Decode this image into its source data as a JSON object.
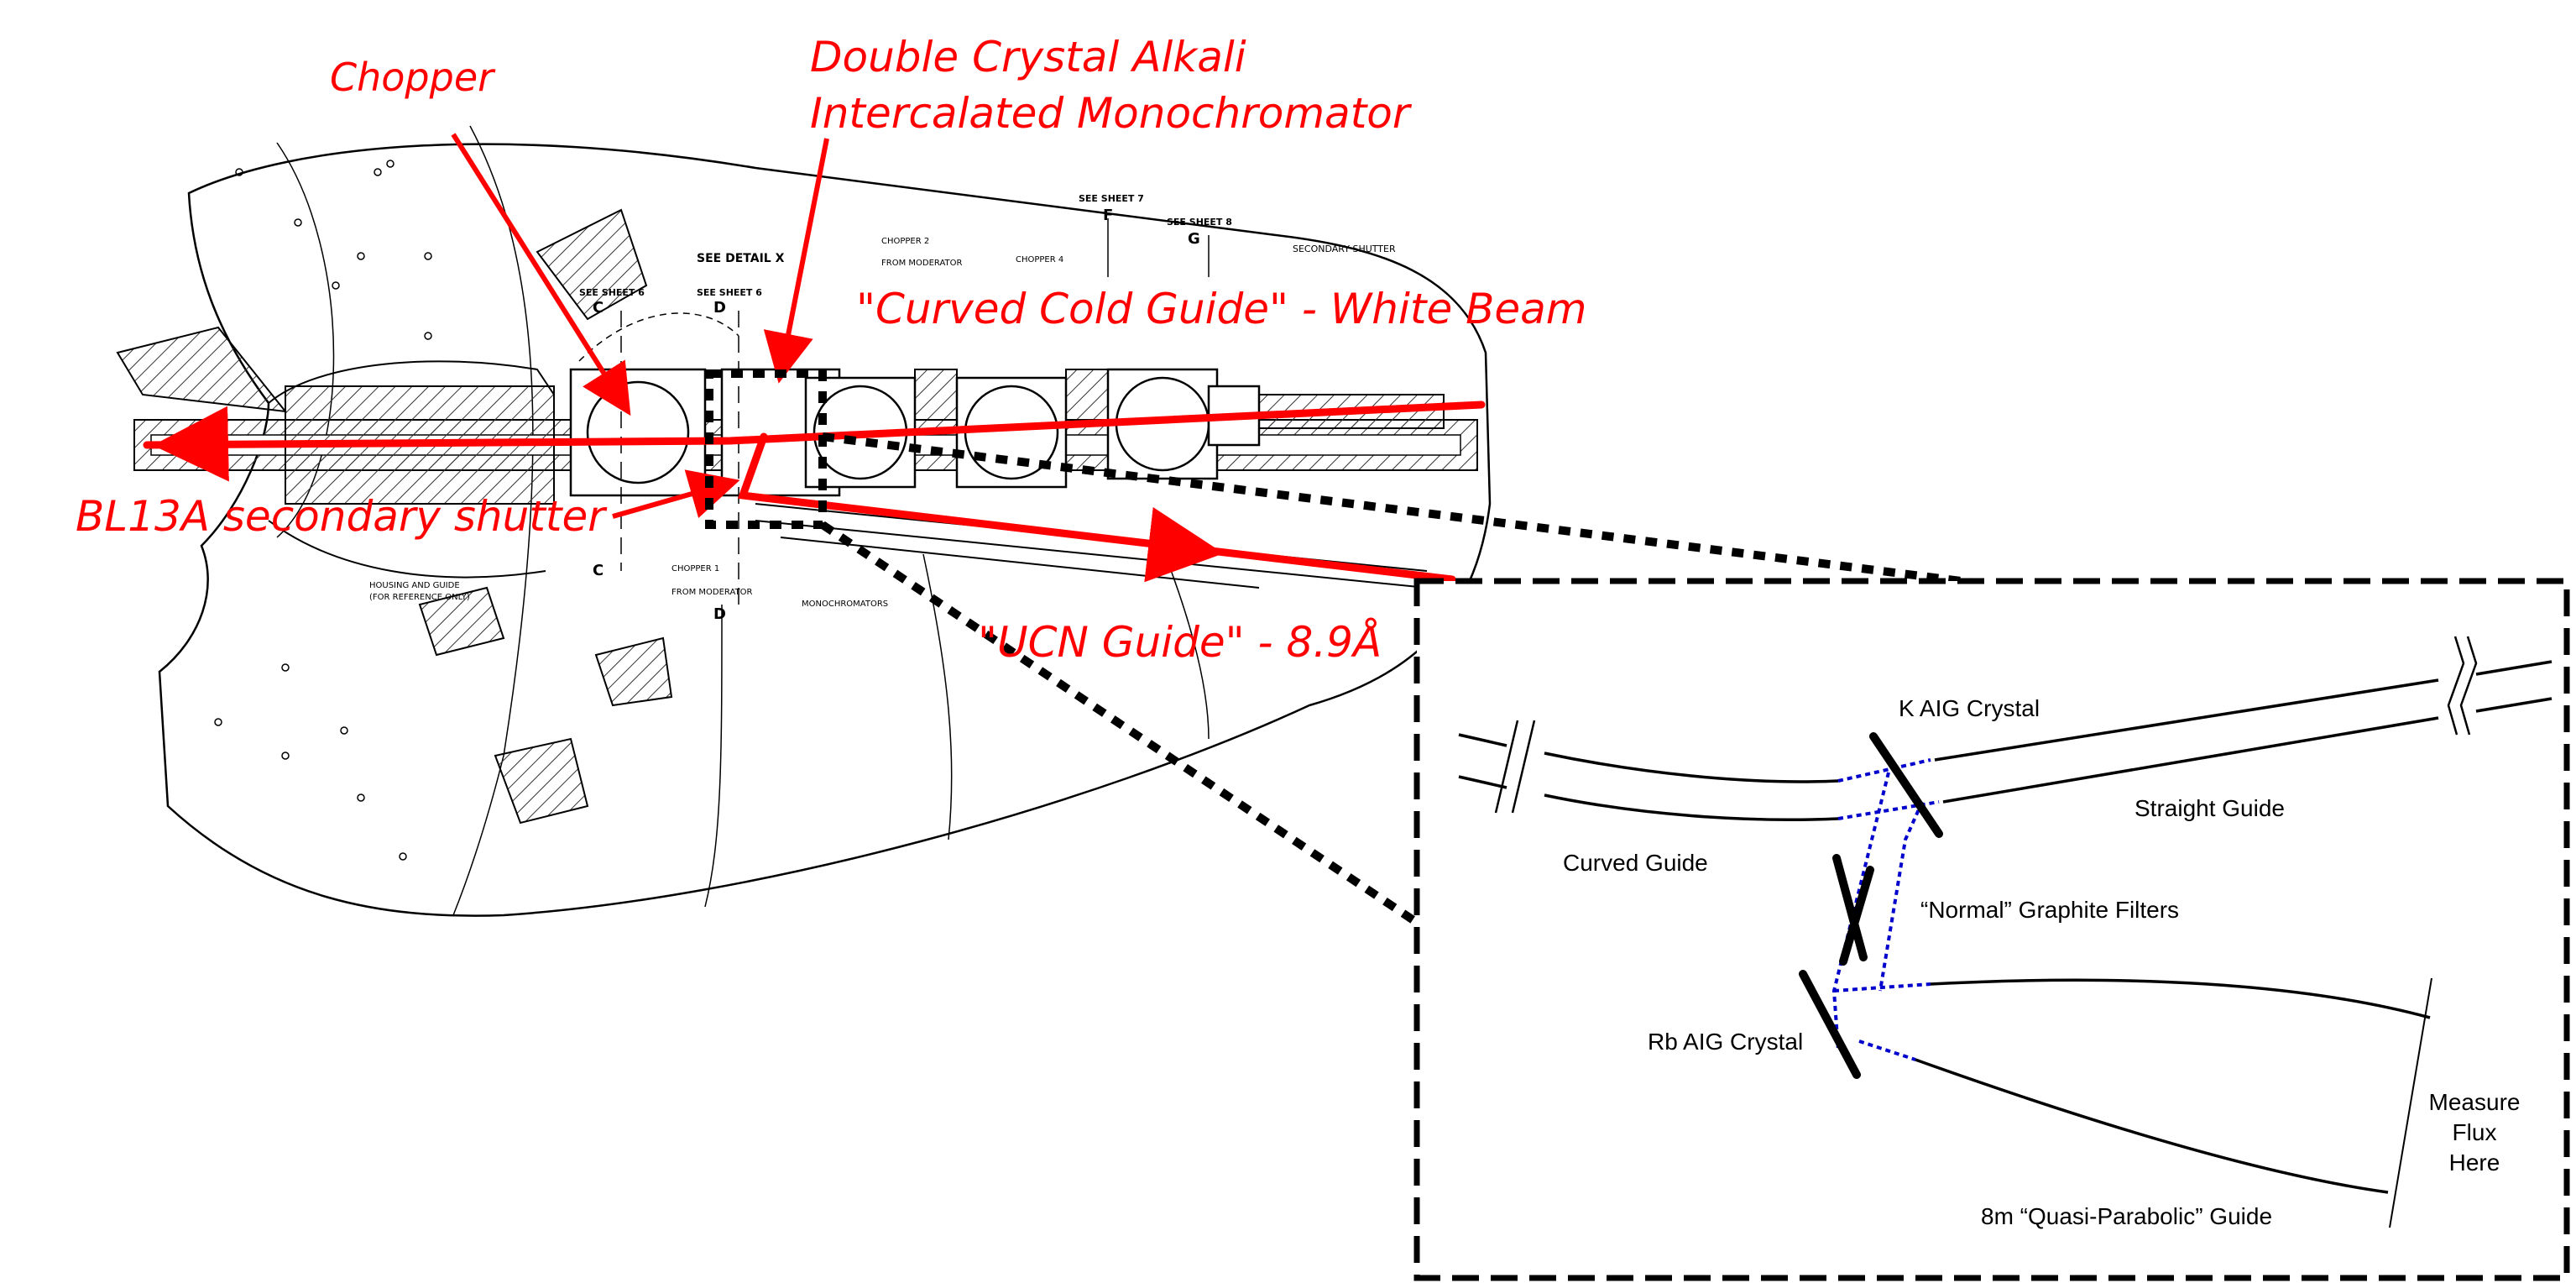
{
  "callouts": {
    "chopper": "Chopper",
    "monochromator_line1": "Double Crystal Alkali",
    "monochromator_line2": "Intercalated Monochromator",
    "cold_guide": "\"Curved Cold Guide\" - White Beam",
    "shutter": "BL13A secondary shutter",
    "ucn_guide": "\"UCN Guide\" - 8.9Å"
  },
  "drawing_notes": {
    "see_detail": "SEE DETAIL X",
    "see_sheet_6a": "SEE SHEET 6",
    "see_sheet_6b": "SEE SHEET 6",
    "see_sheet_7": "SEE SHEET 7",
    "see_sheet_8": "SEE SHEET 8",
    "mark_c": "C",
    "mark_d": "D",
    "mark_f": "F",
    "mark_g": "G",
    "secondary_shutter": "SECONDARY SHUTTER",
    "monochromators": "MONOCHROMATORS",
    "chopper_1": "CHOPPER 1",
    "chopper_2": "CHOPPER 2",
    "chopper_4": "CHOPPER 4",
    "from_moderator": "FROM MODERATOR",
    "housing_guide": "HOUSING AND GUIDE",
    "reference_only": "(FOR REFERENCE ONLY)"
  },
  "inset": {
    "k_crystal": "K AIG Crystal",
    "straight_guide": "Straight Guide",
    "curved_guide": "Curved Guide",
    "graphite_filters": "“Normal” Graphite Filters",
    "rb_crystal": "Rb AIG Crystal",
    "measure_1": "Measure",
    "measure_2": "Flux",
    "measure_3": "Here",
    "parabolic_guide": "8m “Quasi-Parabolic” Guide"
  },
  "colors": {
    "beam": "#ff0000",
    "callout_text": "#ff0000",
    "neutron_path": "#0000cc",
    "drawing": "#000000"
  }
}
